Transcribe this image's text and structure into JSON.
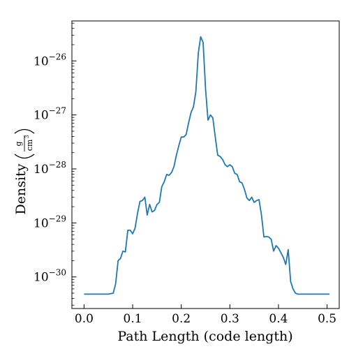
{
  "chart_data": {
    "type": "line",
    "xlabel": "Path Length  (code length)",
    "ylabel_prefix": "Density",
    "ylabel_unit_numerator": "g",
    "ylabel_unit_denominator": "cm",
    "ylabel_unit_exponent": "3",
    "xlim": [
      -0.025,
      0.525
    ],
    "ylim": [
      2.6e-31,
      5.5e-26
    ],
    "y_scale": "log",
    "grid": false,
    "line_color": "#1f77b4",
    "x_ticks": [
      {
        "value": 0.0,
        "label": "0.0"
      },
      {
        "value": 0.1,
        "label": "0.1"
      },
      {
        "value": 0.2,
        "label": "0.2"
      },
      {
        "value": 0.3,
        "label": "0.3"
      },
      {
        "value": 0.4,
        "label": "0.4"
      },
      {
        "value": 0.5,
        "label": "0.5"
      }
    ],
    "y_ticks": [
      {
        "value": 1e-30,
        "base": "10",
        "exp": "−30"
      },
      {
        "value": 1e-29,
        "base": "10",
        "exp": "−29"
      },
      {
        "value": 1e-28,
        "base": "10",
        "exp": "−28"
      },
      {
        "value": 1e-27,
        "base": "10",
        "exp": "−27"
      },
      {
        "value": 1e-26,
        "base": "10",
        "exp": "−26"
      }
    ],
    "series": [
      {
        "x": [
          0.0,
          0.01,
          0.02,
          0.03,
          0.04,
          0.05,
          0.06,
          0.065,
          0.07,
          0.075,
          0.08,
          0.085,
          0.09,
          0.095,
          0.1,
          0.105,
          0.11,
          0.115,
          0.12,
          0.125,
          0.13,
          0.135,
          0.14,
          0.145,
          0.15,
          0.155,
          0.16,
          0.165,
          0.17,
          0.175,
          0.18,
          0.185,
          0.19,
          0.195,
          0.2,
          0.205,
          0.21,
          0.215,
          0.22,
          0.225,
          0.23,
          0.235,
          0.24,
          0.245,
          0.25,
          0.255,
          0.26,
          0.265,
          0.27,
          0.275,
          0.28,
          0.285,
          0.29,
          0.295,
          0.3,
          0.305,
          0.31,
          0.315,
          0.32,
          0.325,
          0.33,
          0.335,
          0.34,
          0.345,
          0.35,
          0.355,
          0.36,
          0.365,
          0.37,
          0.375,
          0.38,
          0.385,
          0.39,
          0.395,
          0.4,
          0.405,
          0.41,
          0.415,
          0.42,
          0.425,
          0.43,
          0.435,
          0.44,
          0.445,
          0.45,
          0.46,
          0.47,
          0.48,
          0.49,
          0.5,
          0.505
        ],
        "y": [
          4.8e-31,
          4.8e-31,
          4.8e-31,
          4.8e-31,
          4.8e-31,
          4.8e-31,
          5e-31,
          7.5e-31,
          2e-30,
          2.2e-30,
          3e-30,
          2.9e-30,
          7.3e-30,
          7.3e-30,
          6.3e-30,
          8e-30,
          1.5e-29,
          2.5e-29,
          2.6e-29,
          3e-29,
          1.4e-29,
          2.2e-29,
          1.6e-29,
          1.7e-29,
          2.2e-29,
          2.4e-29,
          4.7e-29,
          5.8e-29,
          7.9e-29,
          7.6e-29,
          8.6e-29,
          1.1e-28,
          1.8e-28,
          2.7e-28,
          3.9e-28,
          3.9e-28,
          4.3e-28,
          7e-28,
          1.1e-27,
          1.4e-27,
          2.7e-27,
          1.4e-26,
          2.8e-26,
          2.2e-26,
          3e-27,
          8e-28,
          1e-27,
          8.8e-28,
          3.9e-28,
          1.8e-28,
          1.7e-28,
          1.5e-28,
          1.2e-28,
          1.1e-28,
          1.2e-28,
          1.1e-28,
          8.3e-29,
          7.9e-29,
          5.8e-29,
          5.5e-29,
          4.2e-29,
          2.9e-29,
          2.6e-29,
          3e-29,
          2.4e-29,
          2.6e-29,
          2.7e-29,
          1.4e-29,
          5.5e-30,
          5.6e-30,
          5.5e-30,
          5e-30,
          3e-30,
          3.8e-30,
          3.4e-30,
          2.8e-30,
          2.3e-30,
          1.7e-30,
          3.2e-30,
          8.2e-31,
          6e-31,
          5e-31,
          4.8e-31,
          4.8e-31,
          4.8e-31,
          4.8e-31,
          4.8e-31,
          4.8e-31,
          4.8e-31,
          4.8e-31,
          4.8e-31
        ]
      }
    ]
  }
}
